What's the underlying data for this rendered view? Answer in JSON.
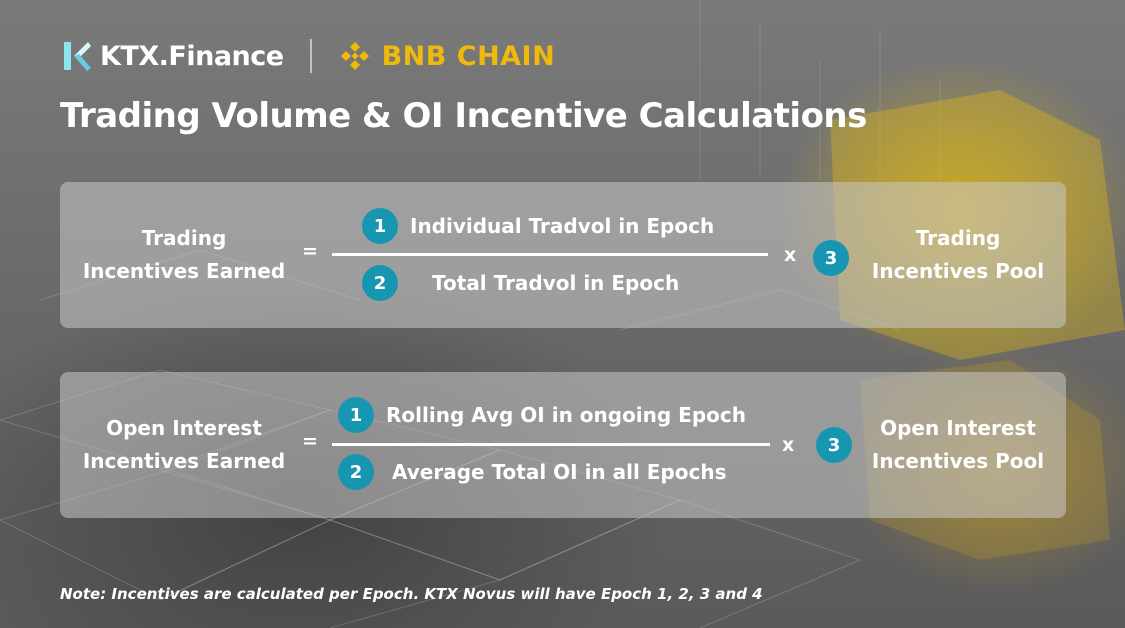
{
  "brand": {
    "ktx_name": "KTX.Finance",
    "bnb_name": "BNB CHAIN",
    "ktx_icon": "ktx-logo-icon",
    "bnb_icon": "bnb-logo-icon",
    "ktx_color": "#a8e6f0",
    "bnb_color": "#f0b90b"
  },
  "title": "Trading Volume & OI Incentive Calculations",
  "trading": {
    "lhs_line1": "Trading",
    "lhs_line2": "Incentives Earned",
    "equals": "=",
    "n1": "1",
    "numerator": "Individual Tradvol in Epoch",
    "n2": "2",
    "denominator": "Total Tradvol in Epoch",
    "times": "x",
    "n3": "3",
    "rhs_line1": "Trading",
    "rhs_line2": "Incentives Pool"
  },
  "oi": {
    "lhs_line1": "Open Interest",
    "lhs_line2": "Incentives Earned",
    "equals": "=",
    "n1": "1",
    "numerator": "Rolling Avg OI in ongoing Epoch",
    "n2": "2",
    "denominator": "Average Total OI in all Epochs",
    "times": "x",
    "n3": "3",
    "rhs_line1": "Open Interest",
    "rhs_line2": "Incentives Pool"
  },
  "note": "Note: Incentives are calculated per Epoch. KTX Novus will have Epoch 1, 2, 3 and 4",
  "colors": {
    "badge": "#1796b2",
    "card": "rgba(200,200,200,0.55)",
    "text": "#ffffff"
  }
}
